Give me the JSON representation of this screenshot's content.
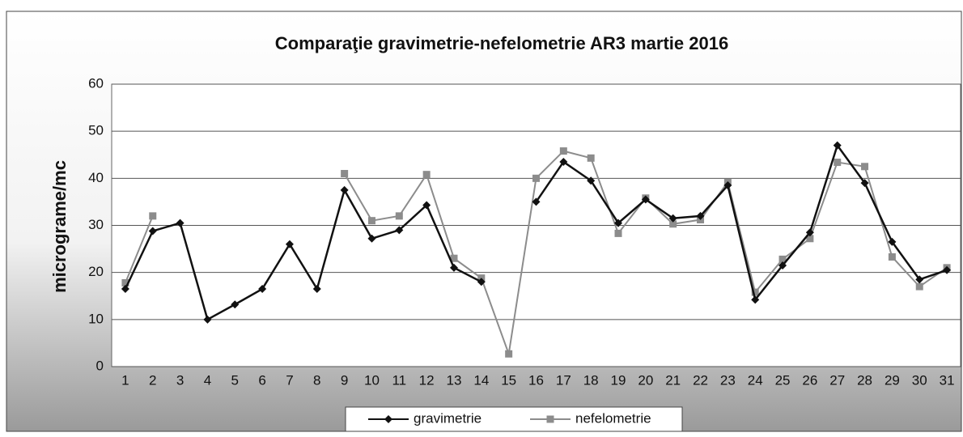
{
  "chart_data": {
    "type": "line",
    "title": "Comparaţie gravimetrie-nefelometrie AR3  martie 2016",
    "y_label": "micrograme/mc",
    "categories": [
      "1",
      "2",
      "3",
      "4",
      "5",
      "6",
      "7",
      "8",
      "9",
      "10",
      "11",
      "12",
      "13",
      "14",
      "15",
      "16",
      "17",
      "18",
      "19",
      "20",
      "21",
      "22",
      "23",
      "24",
      "25",
      "26",
      "27",
      "28",
      "29",
      "30",
      "31"
    ],
    "series": [
      {
        "name": "gravimetrie",
        "color": "#111111",
        "marker": "diamond",
        "values": [
          16.5,
          28.8,
          30.5,
          10,
          13.2,
          16.5,
          26,
          16.5,
          37.5,
          27.2,
          29,
          34.3,
          21,
          18,
          null,
          35,
          43.5,
          39.5,
          30.5,
          35.5,
          31.5,
          32,
          38.5,
          14.2,
          21.5,
          28.5,
          47,
          39,
          26.5,
          18.5,
          20.5
        ]
      },
      {
        "name": "nefelometrie",
        "color": "#8c8c8c",
        "marker": "square",
        "values": [
          17.8,
          32,
          null,
          null,
          null,
          null,
          null,
          null,
          41,
          31,
          32,
          40.8,
          23,
          18.8,
          2.7,
          40,
          45.8,
          44.3,
          28.3,
          35.8,
          30.3,
          31.2,
          39.2,
          15.8,
          22.8,
          27.2,
          43.4,
          42.5,
          23.3,
          17,
          21
        ]
      }
    ],
    "ylim": [
      0,
      60
    ],
    "yticks": [
      0,
      10,
      20,
      30,
      40,
      50,
      60
    ],
    "grid": true,
    "legend": "bottom"
  }
}
